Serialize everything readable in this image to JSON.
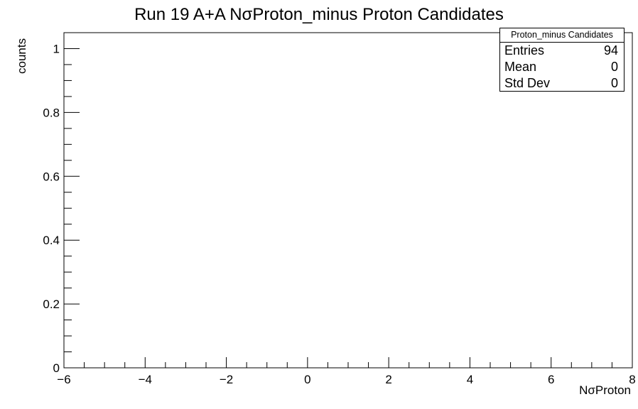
{
  "chart_data": {
    "type": "bar",
    "title": "Run 19 A+A NσProton_minus Proton Candidates",
    "xlabel": "NσProton",
    "ylabel": "counts",
    "xlim": [
      -6,
      8
    ],
    "ylim": [
      0,
      1.05
    ],
    "x_ticks": [
      "−6",
      "−4",
      "−2",
      "0",
      "2",
      "4",
      "6",
      "8"
    ],
    "y_ticks": [
      "0",
      "0.2",
      "0.4",
      "0.6",
      "0.8",
      "1"
    ],
    "values": [],
    "grid": false,
    "stats_box": {
      "title": "Proton_minus Candidates",
      "placement": "top-right",
      "rows": [
        {
          "key": "Entries",
          "value": "94"
        },
        {
          "key": "Mean",
          "value": "0"
        },
        {
          "key": "Std Dev",
          "value": "0"
        }
      ]
    }
  }
}
